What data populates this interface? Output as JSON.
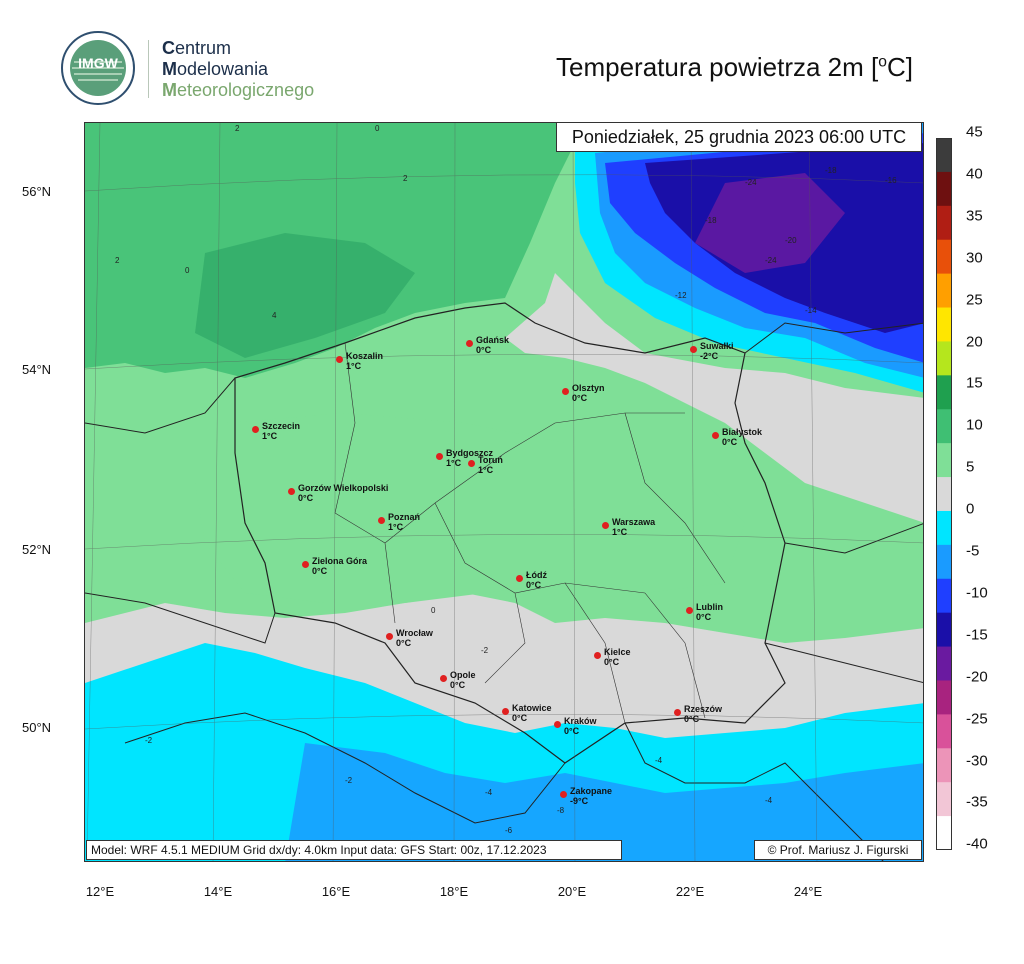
{
  "header": {
    "org_initial_1": "C",
    "org_rest_1": "entrum",
    "org_initial_2": "M",
    "org_rest_2": "odelowania",
    "org_initial_3": "M",
    "org_rest_3": "eteorologicznego",
    "logo_text": "IMGW",
    "title_main": "Temperatura powietrza 2m [",
    "title_deg": "o",
    "title_unit": "C]"
  },
  "map": {
    "valid_time": "Poniedziałek, 25 grudnia 2023 06:00 UTC",
    "model_info": "Model: WRF 4.5.1 MEDIUM   Grid dx/dy: 4.0km   Input data: GFS   Start: 00z, 17.12.2023",
    "credit": "© Prof. Mariusz J. Figurski",
    "lat_labels": [
      "56°N",
      "54°N",
      "52°N",
      "50°N"
    ],
    "lon_labels": [
      "12°E",
      "14°E",
      "16°E",
      "18°E",
      "20°E",
      "22°E",
      "24°E"
    ],
    "colors": {
      "band_0_5": "#7fdf97",
      "band_5_10": "#3fbf73",
      "band_neg0": "#d9d9d9",
      "band_neg5": "#00e5ff",
      "band_neg10": "#1a9bff",
      "band_neg15": "#1f3fff",
      "band_neg20": "#1a0fa8",
      "band_neg25": "#6a1aa0",
      "border": "#222222",
      "city": "#e02020"
    },
    "cities": [
      {
        "name": "Gdańsk",
        "temp": "0°C"
      },
      {
        "name": "Koszalin",
        "temp": "1°C"
      },
      {
        "name": "Suwałki",
        "temp": "-2°C"
      },
      {
        "name": "Olsztyn",
        "temp": "0°C"
      },
      {
        "name": "Szczecin",
        "temp": "1°C"
      },
      {
        "name": "Białystok",
        "temp": "0°C"
      },
      {
        "name": "Bydgoszcz",
        "temp": "1°C"
      },
      {
        "name": "Toruń",
        "temp": "1°C"
      },
      {
        "name": "Gorzów Wielkopolski",
        "temp": "0°C"
      },
      {
        "name": "Poznań",
        "temp": "1°C"
      },
      {
        "name": "Warszawa",
        "temp": "1°C"
      },
      {
        "name": "Zielona Góra",
        "temp": "0°C"
      },
      {
        "name": "Łódź",
        "temp": "0°C"
      },
      {
        "name": "Lublin",
        "temp": "0°C"
      },
      {
        "name": "Wrocław",
        "temp": "0°C"
      },
      {
        "name": "Kielce",
        "temp": "0°C"
      },
      {
        "name": "Opole",
        "temp": "0°C"
      },
      {
        "name": "Katowice",
        "temp": "0°C"
      },
      {
        "name": "Rzeszów",
        "temp": "0°C"
      },
      {
        "name": "Kraków",
        "temp": "0°C"
      },
      {
        "name": "Zakopane",
        "temp": "-9°C"
      }
    ],
    "contour_labels": [
      "2",
      "0",
      "4",
      "-2",
      "-4",
      "-6",
      "-8",
      "-10",
      "-12",
      "-14",
      "-16",
      "-18",
      "-20",
      "-24"
    ]
  },
  "colorbar": {
    "labels": [
      "45",
      "40",
      "35",
      "30",
      "25",
      "20",
      "15",
      "10",
      "5",
      "0",
      "-5",
      "-10",
      "-15",
      "-20",
      "-25",
      "-30",
      "-35",
      "-40"
    ],
    "colors": [
      "#ffffff",
      "#f2c6d6",
      "#ec94b8",
      "#d9519a",
      "#a8237f",
      "#6a1aa0",
      "#1a0fa8",
      "#1f3fff",
      "#1a9bff",
      "#00e5ff",
      "#d9d9d9",
      "#7fdf97",
      "#3fbf73",
      "#1fa04f",
      "#b5e61d",
      "#ffe600",
      "#ff9f00",
      "#e8500a",
      "#b01e14",
      "#6e1010",
      "#3c3c3c"
    ]
  }
}
